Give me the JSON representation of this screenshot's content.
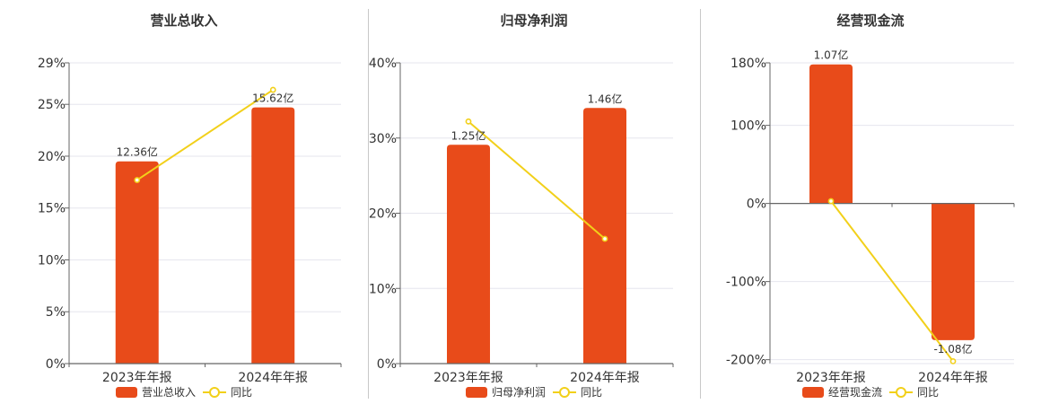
{
  "colors": {
    "bar": "#E84B1A",
    "line": "#F2D01A",
    "grid": "#E6E6EE",
    "axis": "#666666",
    "text": "#333333"
  },
  "chart_data": [
    {
      "type": "bar",
      "title": "营业总收入",
      "categories": [
        "2023年年报",
        "2024年年报"
      ],
      "series": [
        {
          "name": "营业总收入",
          "type": "bar",
          "values": [
            19.5,
            24.7
          ],
          "labels": [
            "12.36亿",
            "15.62亿"
          ]
        },
        {
          "name": "同比",
          "type": "line",
          "values": [
            17.7,
            26.4
          ]
        }
      ],
      "ylim": [
        0,
        29
      ],
      "yticks": [
        0,
        5,
        10,
        15,
        20,
        25,
        29
      ],
      "ytick_labels": [
        "0%",
        "5%",
        "10%",
        "15%",
        "20%",
        "25%",
        "29%"
      ],
      "legend": [
        "营业总收入",
        "同比"
      ],
      "legend_position": "bottom",
      "grid": true
    },
    {
      "type": "bar",
      "title": "归母净利润",
      "categories": [
        "2023年年报",
        "2024年年报"
      ],
      "series": [
        {
          "name": "归母净利润",
          "type": "bar",
          "values": [
            29.1,
            34.0
          ],
          "labels": [
            "1.25亿",
            "1.46亿"
          ]
        },
        {
          "name": "同比",
          "type": "line",
          "values": [
            32.2,
            16.6
          ]
        }
      ],
      "ylim": [
        0,
        40
      ],
      "yticks": [
        0,
        10,
        20,
        30,
        40
      ],
      "ytick_labels": [
        "0%",
        "10%",
        "20%",
        "30%",
        "40%"
      ],
      "legend": [
        "归母净利润",
        "同比"
      ],
      "legend_position": "bottom",
      "grid": true
    },
    {
      "type": "bar",
      "title": "经营现金流",
      "categories": [
        "2023年年报",
        "2024年年报"
      ],
      "series": [
        {
          "name": "经营现金流",
          "type": "bar",
          "values": [
            178,
            -175
          ],
          "labels": [
            "1.07亿",
            "-1.08亿"
          ]
        },
        {
          "name": "同比",
          "type": "line",
          "values": [
            3,
            -202
          ]
        }
      ],
      "ylim": [
        -205,
        180
      ],
      "yticks": [
        -200,
        -100,
        0,
        100,
        180
      ],
      "ytick_labels": [
        "-200%",
        "-100%",
        "0%",
        "100%",
        "180%"
      ],
      "legend": [
        "经营现金流",
        "同比"
      ],
      "legend_position": "bottom",
      "grid": true
    }
  ]
}
